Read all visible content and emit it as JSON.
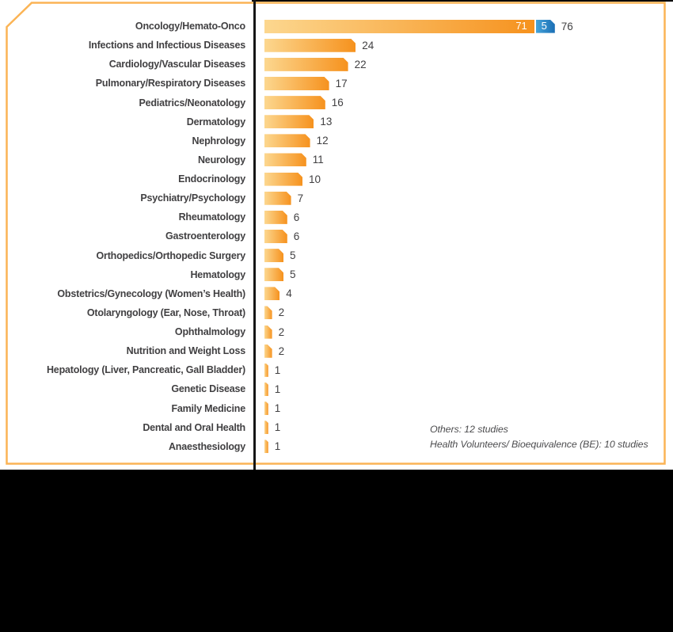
{
  "chart_data": {
    "type": "bar",
    "orientation": "horizontal",
    "title": "",
    "xlabel": "",
    "ylabel": "",
    "x_axis": {
      "visible": false
    },
    "legend": {
      "visible": false
    },
    "categories": [
      "Oncology/Hemato-Onco",
      "Infections and Infectious Diseases",
      "Cardiology/Vascular Diseases",
      "Pulmonary/Respiratory Diseases",
      "Pediatrics/Neonatology",
      "Dermatology",
      "Nephrology",
      "Neurology",
      "Endocrinology",
      "Psychiatry/Psychology",
      "Rheumatology",
      "Gastroenterology",
      "Orthopedics/Orthopedic Surgery",
      "Hematology",
      "Obstetrics/Gynecology (Women’s Health)",
      "Otolaryngology (Ear, Nose, Throat)",
      "Ophthalmology",
      "Nutrition and Weight Loss",
      "Hepatology (Liver, Pancreatic, Gall Bladder)",
      "Genetic Disease",
      "Family Medicine",
      "Dental and Oral Health",
      "Anaesthesiology"
    ],
    "values": [
      76,
      24,
      22,
      17,
      16,
      13,
      12,
      11,
      10,
      7,
      6,
      6,
      5,
      5,
      4,
      2,
      2,
      2,
      1,
      1,
      1,
      1,
      1
    ],
    "rows": [
      {
        "label": "Oncology/Hemato-Onco",
        "value": 71,
        "in_label": "71",
        "blue_value": 5,
        "blue_label": "5",
        "total_label": "76"
      },
      {
        "label": "Infections and Infectious Diseases",
        "value": 24,
        "total_label": "24"
      },
      {
        "label": "Cardiology/Vascular Diseases",
        "value": 22,
        "total_label": "22"
      },
      {
        "label": "Pulmonary/Respiratory Diseases",
        "value": 17,
        "total_label": "17"
      },
      {
        "label": "Pediatrics/Neonatology",
        "value": 16,
        "total_label": "16"
      },
      {
        "label": "Dermatology",
        "value": 13,
        "total_label": "13"
      },
      {
        "label": "Nephrology",
        "value": 12,
        "total_label": "12"
      },
      {
        "label": "Neurology",
        "value": 11,
        "total_label": "11"
      },
      {
        "label": "Endocrinology",
        "value": 10,
        "total_label": "10"
      },
      {
        "label": "Psychiatry/Psychology",
        "value": 7,
        "total_label": "7"
      },
      {
        "label": "Rheumatology",
        "value": 6,
        "total_label": "6"
      },
      {
        "label": "Gastroenterology",
        "value": 6,
        "total_label": "6"
      },
      {
        "label": "Orthopedics/Orthopedic Surgery",
        "value": 5,
        "total_label": "5"
      },
      {
        "label": "Hematology",
        "value": 5,
        "total_label": "5"
      },
      {
        "label": "Obstetrics/Gynecology (Women’s Health)",
        "value": 4,
        "total_label": "4"
      },
      {
        "label": "Otolaryngology (Ear, Nose, Throat)",
        "value": 2,
        "total_label": "2"
      },
      {
        "label": "Ophthalmology",
        "value": 2,
        "total_label": "2"
      },
      {
        "label": "Nutrition and Weight Loss",
        "value": 2,
        "total_label": "2"
      },
      {
        "label": "Hepatology (Liver, Pancreatic, Gall Bladder)",
        "value": 1,
        "total_label": "1"
      },
      {
        "label": "Genetic Disease",
        "value": 1,
        "total_label": "1"
      },
      {
        "label": "Family Medicine",
        "value": 1,
        "total_label": "1"
      },
      {
        "label": "Dental and Oral Health",
        "value": 1,
        "total_label": "1"
      },
      {
        "label": "Anaesthesiology",
        "value": 1,
        "total_label": "1"
      }
    ],
    "annotations": [
      "Others: 12 studies",
      "Health Volunteers/ Bioequivalence (BE): 10 studies"
    ],
    "colors": {
      "bar_gradient_light": "#FCD78F",
      "bar_gradient_dark": "#F6921E",
      "blue_gradient_light": "#45A3D9",
      "blue_gradient_dark": "#1A6FB5",
      "panel_border": "#FBB455",
      "axis": "#161616",
      "label_text": "#414042",
      "in_bar_text": "#FFFFFF",
      "note_text": "#4D4D4F"
    }
  }
}
